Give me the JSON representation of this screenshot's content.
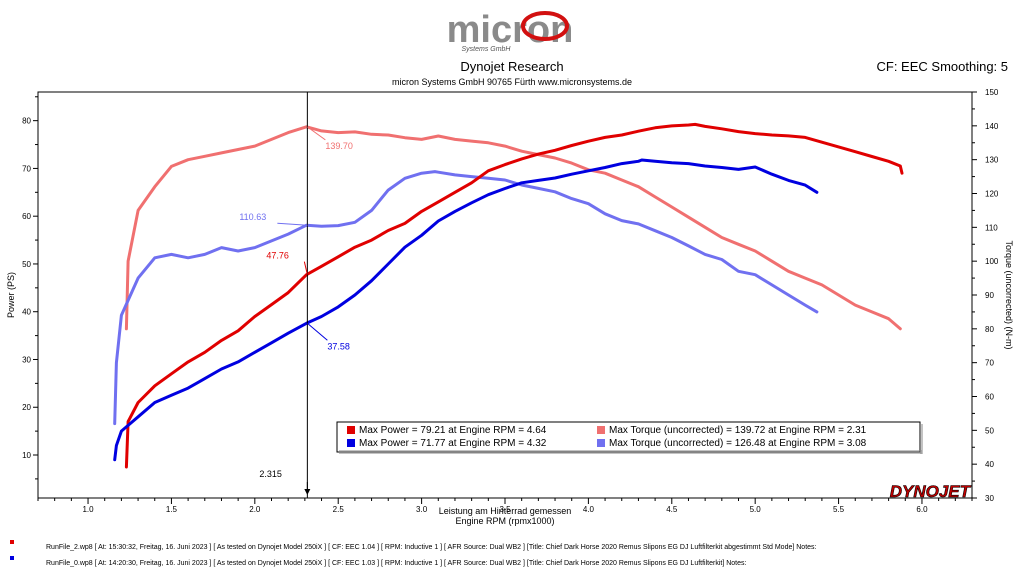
{
  "header": {
    "logo_text": "micron",
    "logo_sub": "Systems GmbH",
    "title": "Dynojet Research",
    "subtitle": "micron Systems GmbH  90765 Fürth www.micronsystems.de",
    "cf_label": "CF: EEC Smoothing: 5"
  },
  "chart_data": {
    "type": "line",
    "x_axis": {
      "label": "Engine RPM (rpmx1000)",
      "range": [
        0.7,
        6.3
      ],
      "ticks": [
        "1.0",
        "1.5",
        "2.0",
        "2.5",
        "3.0",
        "3.5",
        "4.0",
        "4.5",
        "5.0",
        "5.5",
        "6.0"
      ],
      "secondary_label": "Leistung am Hinterrad gemessen"
    },
    "y_left": {
      "label": "Power (PS)",
      "range": [
        1,
        86
      ],
      "ticks": [
        "10",
        "20",
        "30",
        "40",
        "50",
        "60",
        "70",
        "80"
      ]
    },
    "y_right": {
      "label": "Torque (uncorrected) (N-m)",
      "range": [
        30,
        150
      ],
      "ticks": [
        "30",
        "40",
        "50",
        "60",
        "70",
        "80",
        "90",
        "100",
        "110",
        "120",
        "130",
        "140",
        "150"
      ]
    },
    "grid": false,
    "series": [
      {
        "name": "Max Power",
        "run": "RunFile_2",
        "color": "#e00000",
        "axis": "left",
        "x": [
          1.23,
          1.24,
          1.3,
          1.4,
          1.5,
          1.6,
          1.7,
          1.8,
          1.9,
          2.0,
          2.1,
          2.2,
          2.31,
          2.4,
          2.5,
          2.6,
          2.7,
          2.8,
          2.9,
          3.0,
          3.1,
          3.2,
          3.3,
          3.4,
          3.5,
          3.6,
          3.7,
          3.8,
          3.9,
          4.0,
          4.1,
          4.2,
          4.3,
          4.4,
          4.5,
          4.6,
          4.64,
          4.7,
          4.8,
          4.9,
          5.0,
          5.1,
          5.2,
          5.3,
          5.4,
          5.5,
          5.6,
          5.7,
          5.8,
          5.87,
          5.88
        ],
        "y": [
          7.5,
          17,
          21,
          24.5,
          27,
          29.5,
          31.5,
          34,
          36,
          39,
          41.5,
          44,
          47.76,
          49.5,
          51.5,
          53.5,
          55,
          57,
          58.5,
          61,
          63,
          65,
          67,
          69.5,
          70.8,
          72,
          73,
          73.8,
          74.8,
          75.7,
          76.5,
          77,
          77.8,
          78.5,
          78.9,
          79.1,
          79.21,
          78.8,
          78.3,
          77.7,
          77.3,
          77,
          76.8,
          76.5,
          75.5,
          74.5,
          73.5,
          72.5,
          71.5,
          70.5,
          69
        ]
      },
      {
        "name": "Max Power",
        "run": "RunFile_0",
        "color": "#0000e0",
        "axis": "left",
        "x": [
          1.16,
          1.17,
          1.2,
          1.3,
          1.4,
          1.5,
          1.6,
          1.7,
          1.8,
          1.9,
          2.0,
          2.1,
          2.2,
          2.31,
          2.4,
          2.5,
          2.6,
          2.7,
          2.8,
          2.9,
          3.0,
          3.1,
          3.2,
          3.3,
          3.4,
          3.5,
          3.6,
          3.7,
          3.8,
          3.9,
          4.0,
          4.1,
          4.2,
          4.3,
          4.32,
          4.4,
          4.5,
          4.6,
          4.7,
          4.8,
          4.9,
          5.0,
          5.1,
          5.2,
          5.3,
          5.37
        ],
        "y": [
          9,
          12,
          15,
          18,
          21,
          22.5,
          24,
          26,
          28,
          29.5,
          31.5,
          33.5,
          35.5,
          37.58,
          39,
          41,
          43.5,
          46.5,
          50,
          53.5,
          56,
          59,
          61,
          62.8,
          64.5,
          65.8,
          67,
          67.5,
          68,
          68.8,
          69.5,
          70.2,
          71,
          71.5,
          71.77,
          71.5,
          71.2,
          71,
          70.5,
          70.2,
          69.8,
          70.3,
          68.8,
          67.5,
          66.5,
          65
        ]
      },
      {
        "name": "Max Torque (uncorrected)",
        "run": "RunFile_2",
        "color": "#f07070",
        "axis": "right",
        "x": [
          1.23,
          1.24,
          1.3,
          1.4,
          1.5,
          1.6,
          1.7,
          1.8,
          1.9,
          2.0,
          2.1,
          2.2,
          2.31,
          2.4,
          2.5,
          2.6,
          2.7,
          2.8,
          2.9,
          3.0,
          3.1,
          3.2,
          3.3,
          3.4,
          3.5,
          3.6,
          3.7,
          3.8,
          3.9,
          4.0,
          4.1,
          4.2,
          4.3,
          4.4,
          4.5,
          4.6,
          4.7,
          4.8,
          4.9,
          5.0,
          5.1,
          5.2,
          5.3,
          5.4,
          5.5,
          5.6,
          5.7,
          5.8,
          5.87
        ],
        "y": [
          80,
          100,
          115,
          122,
          128,
          130,
          131,
          132,
          133,
          134,
          136,
          138,
          139.72,
          138.5,
          138,
          138.2,
          137.5,
          137.3,
          136.5,
          136,
          137,
          136,
          135.5,
          135,
          134,
          132.5,
          131.5,
          130.5,
          129,
          127,
          126,
          124,
          122,
          119,
          116,
          113,
          110,
          107,
          105,
          103,
          100,
          97,
          95,
          93,
          90,
          87,
          85,
          83,
          80
        ]
      },
      {
        "name": "Max Torque (uncorrected)",
        "run": "RunFile_0",
        "color": "#7070f0",
        "axis": "right",
        "x": [
          1.16,
          1.17,
          1.2,
          1.3,
          1.4,
          1.5,
          1.6,
          1.7,
          1.8,
          1.9,
          2.0,
          2.1,
          2.2,
          2.31,
          2.4,
          2.5,
          2.6,
          2.7,
          2.8,
          2.9,
          3.0,
          3.08,
          3.1,
          3.2,
          3.3,
          3.4,
          3.5,
          3.6,
          3.7,
          3.8,
          3.9,
          4.0,
          4.1,
          4.2,
          4.3,
          4.4,
          4.5,
          4.6,
          4.7,
          4.8,
          4.9,
          5.0,
          5.1,
          5.2,
          5.3,
          5.37
        ],
        "y": [
          52,
          70,
          84,
          95,
          101,
          102,
          101,
          102,
          104,
          103,
          104,
          106,
          108,
          110.63,
          110.3,
          110.5,
          111.5,
          115,
          121,
          124.5,
          126,
          126.48,
          126.3,
          125.5,
          125,
          124.5,
          124,
          122.5,
          121.5,
          120.5,
          118.5,
          117,
          114,
          112,
          111,
          109,
          107,
          104.5,
          102,
          100.5,
          97,
          96,
          93,
          90,
          87,
          85
        ]
      }
    ],
    "legend": [
      {
        "text": "Max Power = 79.21 at Engine RPM = 4.64",
        "color": "#e00000"
      },
      {
        "text": "Max Torque (uncorrected) = 139.72 at Engine RPM = 2.31",
        "color": "#f07070"
      },
      {
        "text": "Max Power = 71.77 at Engine RPM = 4.32",
        "color": "#0000e0"
      },
      {
        "text": "Max Torque (uncorrected) = 126.48 at Engine RPM = 3.08",
        "color": "#7070f0"
      }
    ],
    "legend_placement": "bottom-right",
    "cursor": {
      "x": 2.315,
      "label": "2.315",
      "readouts": [
        {
          "series": 2,
          "value": "139.70",
          "y": 139.7,
          "axis": "right"
        },
        {
          "series": 3,
          "value": "110.63",
          "y": 110.63,
          "axis": "right"
        },
        {
          "series": 0,
          "value": "47.76",
          "y": 47.76,
          "axis": "left"
        },
        {
          "series": 1,
          "value": "37.58",
          "y": 37.58,
          "axis": "left"
        }
      ]
    },
    "watermark": "DYNOJET"
  },
  "footer": {
    "runs": [
      {
        "color": "#e00000",
        "text": "RunFile_2.wp8  [ At:  15:30:32, Freitag, 16. Juni 2023 ] [ As tested on Dynojet Model 250iX ] [ CF: EEC 1.04 ] [ RPM: Inductive 1 ] [ AFR Source: Dual WB2 ] [Title: Chief Dark Horse 2020 Remus Slipons EG DJ Luftfilterkit abgestimmt Std Mode]  Notes:"
      },
      {
        "color": "#0000e0",
        "text": "RunFile_0.wp8  [ At:  14:20:30, Freitag, 16. Juni 2023 ] [ As tested on Dynojet Model 250iX ] [ CF: EEC 1.03 ] [ RPM: Inductive 1 ] [ AFR Source: Dual WB2 ] [Title: Chief Dark Horse 2020 Remus Slipons EG DJ Luftfilterkit]  Notes:"
      }
    ]
  }
}
